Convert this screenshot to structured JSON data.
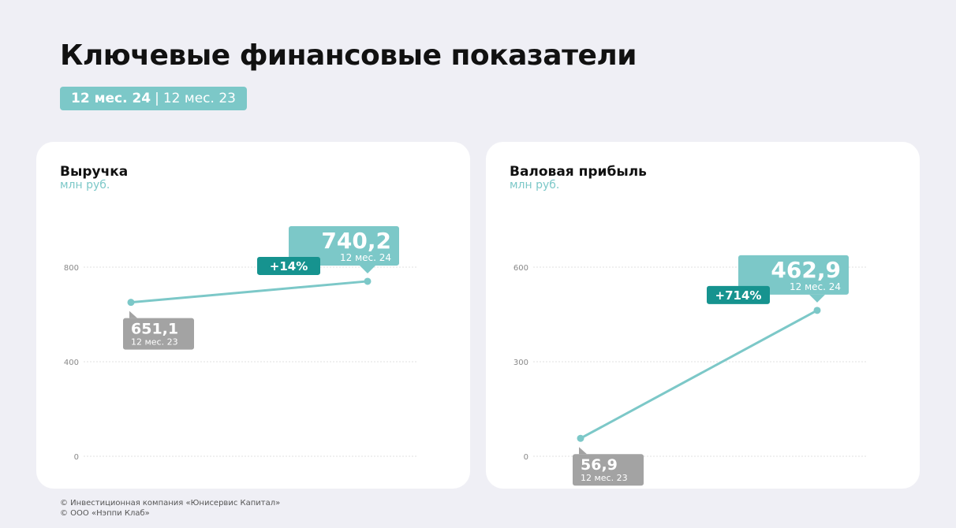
{
  "title": "Ключевые финансовые показатели",
  "period": {
    "current": "12 мес. 24",
    "separator": "|",
    "previous": "12 мес. 23"
  },
  "colors": {
    "accent": "#7cc8c8",
    "accent_dark": "#16938f",
    "previous": "#a3a3a3",
    "background": "#efeff5"
  },
  "chart_data": [
    {
      "type": "line",
      "title": "Выручка",
      "ylabel": "млн руб.",
      "ylim": [
        0,
        800
      ],
      "y_ticks": [
        "0",
        "400",
        "800"
      ],
      "series": [
        {
          "values": [
            651.1,
            740.2
          ]
        }
      ],
      "labels": [
        {
          "value": "651,1",
          "period": "12 мес. 23"
        },
        {
          "value": "740,2",
          "period": "12 мес. 24"
        }
      ],
      "change": "+14%"
    },
    {
      "type": "line",
      "title": "Валовая прибыль",
      "ylabel": "млн руб.",
      "ylim": [
        0,
        600
      ],
      "y_ticks": [
        "0",
        "300",
        "600"
      ],
      "series": [
        {
          "values": [
            56.9,
            462.9
          ]
        }
      ],
      "labels": [
        {
          "value": "56,9",
          "period": "12 мес. 23"
        },
        {
          "value": "462,9",
          "period": "12 мес. 24"
        }
      ],
      "change": "+714%"
    }
  ],
  "footer": [
    "© Инвестиционная компания «Юнисервис Капитал»",
    "© ООО «Нэппи Клаб»"
  ]
}
